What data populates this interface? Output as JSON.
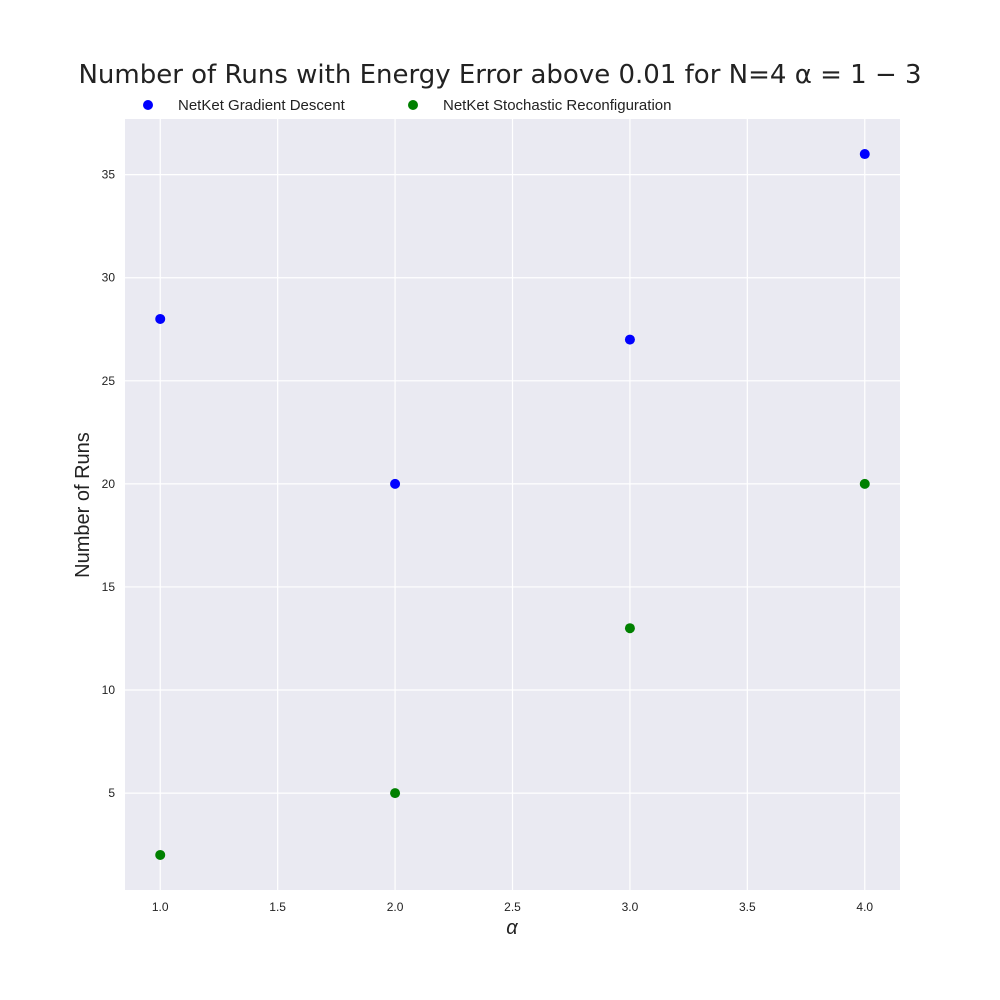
{
  "chart_data": {
    "type": "scatter",
    "title": "Number of Runs with Energy Error above 0.01 for N=4 α = 1 − 3",
    "xlabel": "α",
    "ylabel": "Number of Runs",
    "xlim": [
      0.85,
      4.15
    ],
    "ylim": [
      0.3,
      37.7
    ],
    "xticks": [
      1.0,
      1.5,
      2.0,
      2.5,
      3.0,
      3.5,
      4.0
    ],
    "xtick_labels": [
      "1.0",
      "1.5",
      "2.0",
      "2.5",
      "3.0",
      "3.5",
      "4.0"
    ],
    "yticks": [
      5,
      10,
      15,
      20,
      25,
      30,
      35
    ],
    "ytick_labels": [
      "5",
      "10",
      "15",
      "20",
      "25",
      "30",
      "35"
    ],
    "grid": true,
    "legend_position": "top",
    "plot_background": "#eaeaf2",
    "grid_color": "#ffffff",
    "series": [
      {
        "name": "NetKet Gradient Descent",
        "color": "#0000ff",
        "x": [
          1,
          2,
          3,
          4
        ],
        "y": [
          28,
          20,
          27,
          36
        ]
      },
      {
        "name": "NetKet Stochastic Reconfiguration",
        "color": "#008000",
        "x": [
          1,
          2,
          3,
          4
        ],
        "y": [
          2,
          5,
          13,
          20
        ]
      }
    ]
  }
}
